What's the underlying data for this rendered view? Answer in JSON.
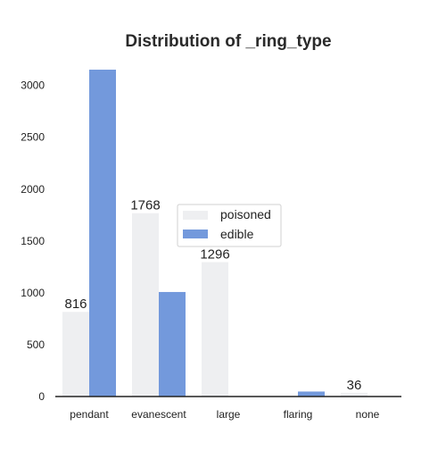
{
  "chart_data": {
    "type": "bar",
    "title": "Distribution of _ring_type",
    "xlabel": "",
    "ylabel": "",
    "categories": [
      "pendant",
      "evanescent",
      "large",
      "flaring",
      "none"
    ],
    "series": [
      {
        "name": "poisoned",
        "color": "#eeeff1",
        "values": [
          816,
          1768,
          1296,
          0,
          36
        ]
      },
      {
        "name": "edible",
        "color": "#7399dc",
        "values": [
          3152,
          1008,
          0,
          48,
          0
        ]
      }
    ],
    "data_labels": [
      {
        "category": "pendant",
        "series": "poisoned",
        "text": "816"
      },
      {
        "category": "evanescent",
        "series": "poisoned",
        "text": "1768"
      },
      {
        "category": "large",
        "series": "poisoned",
        "text": "1296"
      },
      {
        "category": "none",
        "series": "poisoned",
        "text": "36"
      }
    ],
    "yticks": [
      0,
      500,
      1000,
      1500,
      2000,
      2500,
      3000
    ],
    "ylim": [
      0,
      3350
    ],
    "grid": false,
    "legend_position": "center"
  }
}
